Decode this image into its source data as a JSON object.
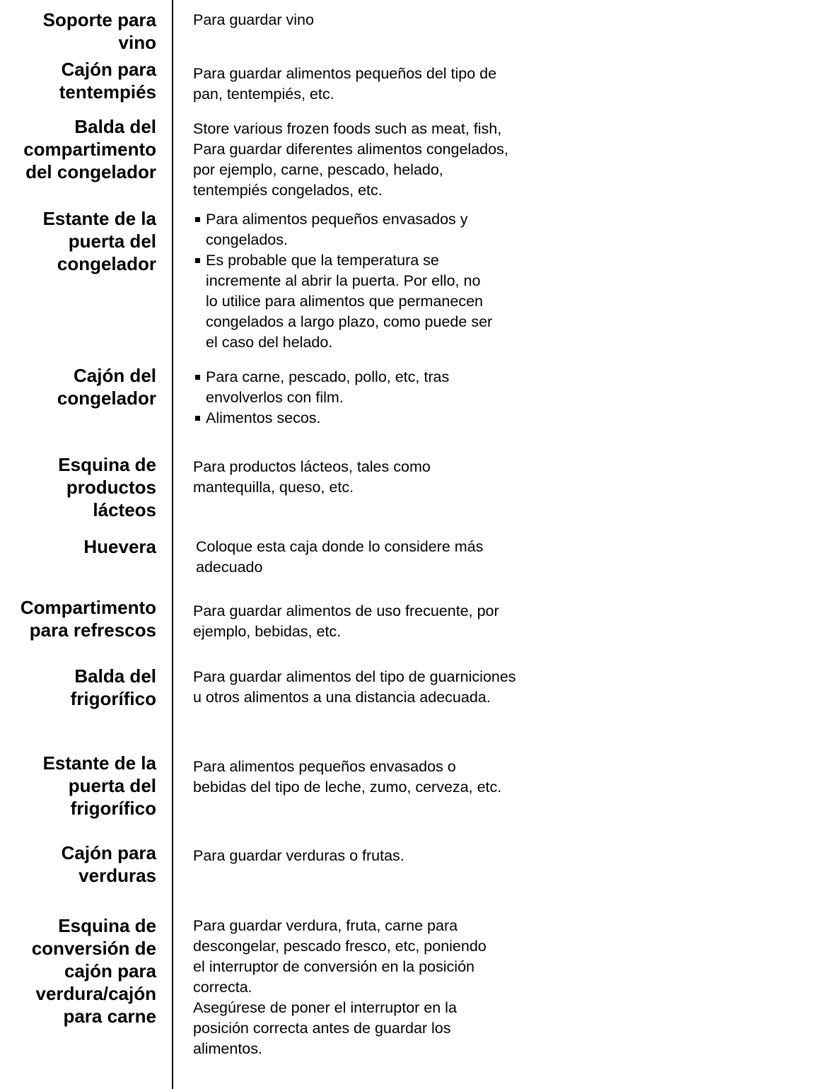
{
  "rows": [
    {
      "label": [
        "Soporte para",
        "vino"
      ],
      "description": [
        "Para guardar vino"
      ]
    },
    {
      "label": [
        "Cajón para",
        "tentempiés"
      ],
      "description": [
        "Para guardar alimentos pequeños del tipo de",
        "pan, tentempiés, etc."
      ]
    },
    {
      "label": [
        "Balda del",
        "compartimento",
        "del congelador"
      ],
      "description": [
        "Store various frozen foods such as meat, fish,",
        "Para guardar diferentes alimentos congelados,",
        "por ejemplo, carne, pescado, helado,",
        "tentempiés congelados, etc."
      ]
    },
    {
      "label": [
        "Estante de la",
        "puerta del",
        "congelador"
      ],
      "bullets": [
        [
          "Para alimentos pequeños envasados y",
          "congelados."
        ],
        [
          "Es probable que la temperatura se",
          "incremente al abrir la puerta. Por ello, no",
          "lo utilice para alimentos que permanecen",
          "congelados a largo plazo, como puede ser",
          "el caso del helado."
        ]
      ]
    },
    {
      "label": [
        "Cajón del",
        "congelador"
      ],
      "bullets": [
        [
          "Para carne, pescado, pollo, etc, tras",
          "envolverlos con film."
        ],
        [
          "Alimentos secos."
        ]
      ]
    },
    {
      "label": [
        "Esquina de",
        "productos",
        "lácteos"
      ],
      "description": [
        "Para productos lácteos, tales como",
        "mantequilla, queso, etc."
      ]
    },
    {
      "label": [
        "Huevera"
      ],
      "description": [
        "Coloque esta caja  donde lo considere más",
        "adecuado"
      ]
    },
    {
      "label": [
        "Compartimento",
        "para refrescos"
      ],
      "description": [
        "Para guardar alimentos de uso frecuente, por",
        "ejemplo, bebidas, etc."
      ]
    },
    {
      "label": [
        "Balda del",
        "frigorífico"
      ],
      "description": [
        "Para guardar alimentos del tipo de guarniciones",
        "u otros alimentos a una distancia adecuada."
      ]
    },
    {
      "label": [
        "Estante de la",
        "puerta del",
        "frigorífico"
      ],
      "description": [
        "Para alimentos pequeños envasados o",
        "bebidas del tipo de leche, zumo, cerveza, etc."
      ]
    },
    {
      "label": [
        "Cajón para",
        "verduras"
      ],
      "description": [
        "Para guardar verduras o frutas."
      ]
    },
    {
      "label": [
        "Esquina de",
        "conversión de",
        "cajón para",
        "verdura/cajón",
        "para carne"
      ],
      "description": [
        "Para guardar verdura, fruta, carne para",
        "descongelar, pescado fresco, etc, poniendo",
        "el interruptor de conversión en la posición",
        "correcta.",
        "Asegúrese de poner el interruptor en la",
        "posición correcta antes de guardar los",
        "alimentos."
      ]
    }
  ]
}
